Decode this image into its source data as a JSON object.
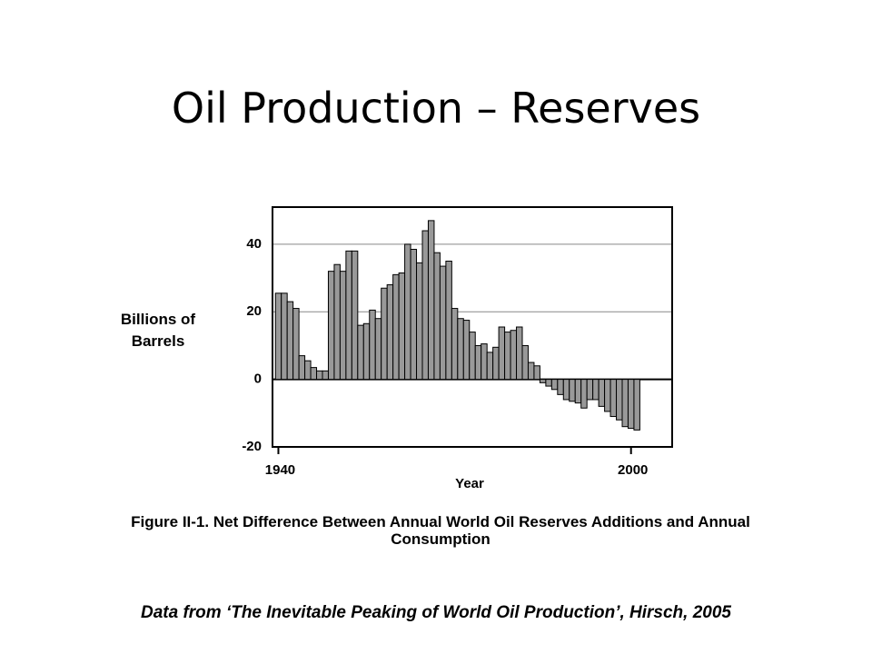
{
  "title": "Oil Production – Reserves",
  "footer": "Data from ‘The Inevitable Peaking of World Oil Production’, Hirsch, 2005",
  "chart_data": {
    "type": "bar",
    "caption": "Figure II-1.  Net Difference Between Annual World Oil Reserves Additions and Annual Consumption",
    "y_label": "Billions of Barrels",
    "x_label": "Year",
    "x": [
      1940,
      1941,
      1942,
      1943,
      1944,
      1945,
      1946,
      1947,
      1948,
      1949,
      1950,
      1951,
      1952,
      1953,
      1954,
      1955,
      1956,
      1957,
      1958,
      1959,
      1960,
      1961,
      1962,
      1963,
      1964,
      1965,
      1966,
      1967,
      1968,
      1969,
      1970,
      1971,
      1972,
      1973,
      1974,
      1975,
      1976,
      1977,
      1978,
      1979,
      1980,
      1981,
      1982,
      1983,
      1984,
      1985,
      1986,
      1987,
      1988,
      1989,
      1990,
      1991,
      1992,
      1993,
      1994,
      1995,
      1996,
      1997,
      1998,
      1999,
      2000,
      2001
    ],
    "values": [
      25.5,
      25.5,
      23,
      21,
      7,
      5.5,
      3.5,
      2.5,
      2.5,
      32,
      34,
      32,
      38,
      38,
      16,
      16.5,
      20.5,
      18,
      27,
      28,
      31,
      31.5,
      40,
      38.5,
      34.5,
      44,
      47,
      37.5,
      33.5,
      35,
      21,
      18,
      17.5,
      14,
      10,
      10.5,
      8,
      9.5,
      15.5,
      14,
      14.5,
      15.5,
      10,
      5,
      4,
      -1,
      -2,
      -3,
      -4.5,
      -6,
      -6.5,
      -7,
      -8.5,
      -6,
      -6,
      -8,
      -9.5,
      -11,
      -12,
      -14,
      -14.5,
      -15
    ],
    "color": "#999999",
    "xlim": [
      1939,
      2007
    ],
    "xticks": [
      1940,
      2000
    ],
    "ylim": [
      -20,
      51
    ],
    "yticks": [
      -20,
      0,
      20,
      40
    ],
    "grid": true
  }
}
